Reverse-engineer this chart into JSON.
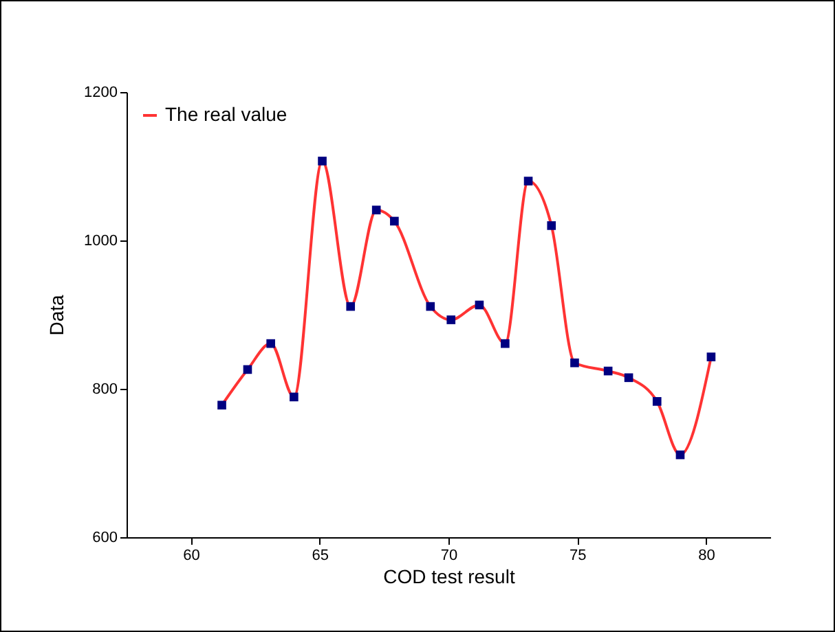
{
  "chart_data": {
    "type": "line",
    "xlabel": "COD test result",
    "ylabel": "Data",
    "x": [
      61.2,
      62.2,
      63.1,
      64.0,
      65.1,
      66.2,
      67.2,
      67.9,
      69.3,
      70.1,
      71.2,
      72.2,
      73.1,
      74.0,
      74.9,
      76.2,
      77.0,
      78.1,
      79.0,
      80.2
    ],
    "series": [
      {
        "name": "The real value",
        "color": "#ff3333",
        "values": [
          778,
          826,
          861,
          789,
          1107,
          911,
          1041,
          1026,
          911,
          893,
          913,
          861,
          1080,
          1020,
          835,
          824,
          815,
          783,
          711,
          843
        ]
      }
    ],
    "xlim": [
      57.5,
      82.5
    ],
    "xticks": [
      60,
      65,
      70,
      75,
      80
    ],
    "ylim": [
      600,
      1200
    ],
    "yticks": [
      600,
      800,
      1000,
      1200
    ],
    "grid": false,
    "legend": "top left",
    "marker": "square",
    "line_style": "solid"
  }
}
